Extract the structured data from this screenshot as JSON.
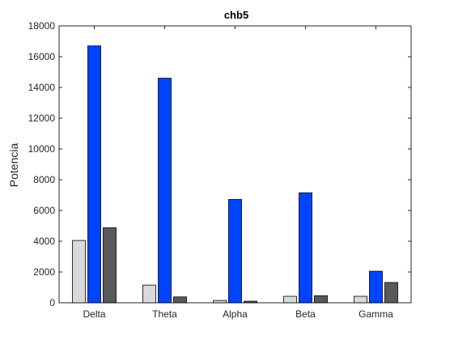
{
  "chart_data": {
    "type": "bar",
    "title": "chb5",
    "xlabel": "",
    "ylabel": "Potencia",
    "categories": [
      "Delta",
      "Theta",
      "Alpha",
      "Beta",
      "Gamma"
    ],
    "ylim": [
      0,
      18000
    ],
    "yticks": [
      0,
      2000,
      4000,
      6000,
      8000,
      10000,
      12000,
      14000,
      16000,
      18000
    ],
    "series": [
      {
        "name": "series-1",
        "color": "#d9d9d9",
        "values": [
          4050,
          1150,
          150,
          420,
          420
        ]
      },
      {
        "name": "series-2",
        "color": "#0044ff",
        "values": [
          16700,
          14600,
          6720,
          7150,
          2050
        ]
      },
      {
        "name": "series-3",
        "color": "#595959",
        "values": [
          4880,
          380,
          100,
          460,
          1320
        ]
      }
    ],
    "grid": false,
    "legend": "none"
  }
}
